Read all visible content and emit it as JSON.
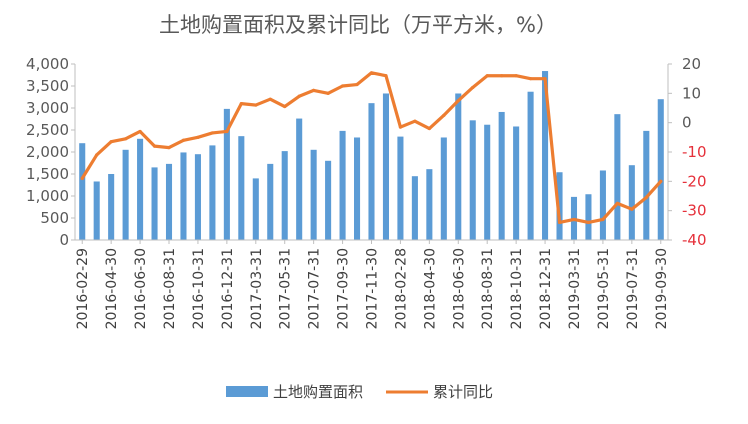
{
  "chart_data": {
    "type": "bar",
    "title": "土地购置面积及累计同比（万平方米，%）",
    "x": [
      "2016-02-29",
      "2016-03-31",
      "2016-04-30",
      "2016-05-31",
      "2016-06-30",
      "2016-07-31",
      "2016-08-31",
      "2016-09-30",
      "2016-10-31",
      "2016-11-30",
      "2016-12-31",
      "2017-02-28",
      "2017-03-31",
      "2017-04-30",
      "2017-05-31",
      "2017-06-30",
      "2017-07-31",
      "2017-08-31",
      "2017-09-30",
      "2017-10-31",
      "2017-11-30",
      "2017-12-31",
      "2018-02-28",
      "2018-03-31",
      "2018-04-30",
      "2018-05-31",
      "2018-06-30",
      "2018-07-31",
      "2018-08-31",
      "2018-09-30",
      "2018-10-31",
      "2018-11-30",
      "2018-12-31",
      "2019-02-28",
      "2019-03-31",
      "2019-04-30",
      "2019-05-31",
      "2019-06-30",
      "2019-07-31",
      "2019-08-31",
      "2019-09-30"
    ],
    "x_tick_labels": [
      "2016-02-29",
      "2016-04-30",
      "2016-06-30",
      "2016-08-31",
      "2016-10-31",
      "2016-12-31",
      "2017-03-31",
      "2017-05-31",
      "2017-07-31",
      "2017-09-30",
      "2017-11-30",
      "2018-02-28",
      "2018-04-30",
      "2018-06-30",
      "2018-08-31",
      "2018-10-31",
      "2018-12-31",
      "2019-03-31",
      "2019-05-31",
      "2019-07-31",
      "2019-09-30"
    ],
    "series": [
      {
        "name": "土地购置面积",
        "type": "bar",
        "axis": "left",
        "color": "#5b9bd5",
        "values": [
          2200,
          1330,
          1500,
          2050,
          2300,
          1650,
          1730,
          1990,
          1950,
          2150,
          2980,
          2360,
          1400,
          1730,
          2020,
          2760,
          2050,
          1800,
          2480,
          2330,
          3110,
          3330,
          2350,
          1450,
          1610,
          2330,
          3330,
          2720,
          2620,
          2910,
          2580,
          3370,
          3840,
          1540,
          980,
          1040,
          1580,
          2860,
          1700,
          2480,
          3200
        ]
      },
      {
        "name": "累计同比",
        "type": "line",
        "axis": "right",
        "color": "#ed7d31",
        "values": [
          -19,
          -11,
          -6.5,
          -5.5,
          -3,
          -8,
          -8.5,
          -6,
          -5,
          -3.5,
          -3,
          6.5,
          6,
          8,
          5.5,
          9,
          11,
          10,
          12.5,
          13,
          17,
          16,
          -1.5,
          0.5,
          -2,
          2.5,
          7.5,
          12,
          16,
          16,
          16,
          15,
          15,
          -34,
          -33,
          -34,
          -33,
          -27.5,
          -29.5,
          -25.5,
          -20
        ]
      }
    ],
    "y_left": {
      "ylim": [
        0,
        4000
      ],
      "ticks": [
        "0",
        "500",
        "1,000",
        "1,500",
        "2,000",
        "2,500",
        "3,000",
        "3,500",
        "4,000"
      ]
    },
    "y_right": {
      "ylim": [
        -40,
        20
      ],
      "ticks": [
        -40,
        -30,
        -20,
        -10,
        0,
        10,
        20
      ]
    },
    "legend": {
      "position": "bottom",
      "entries": [
        "土地购置面积",
        "累计同比"
      ]
    },
    "grid": false
  }
}
